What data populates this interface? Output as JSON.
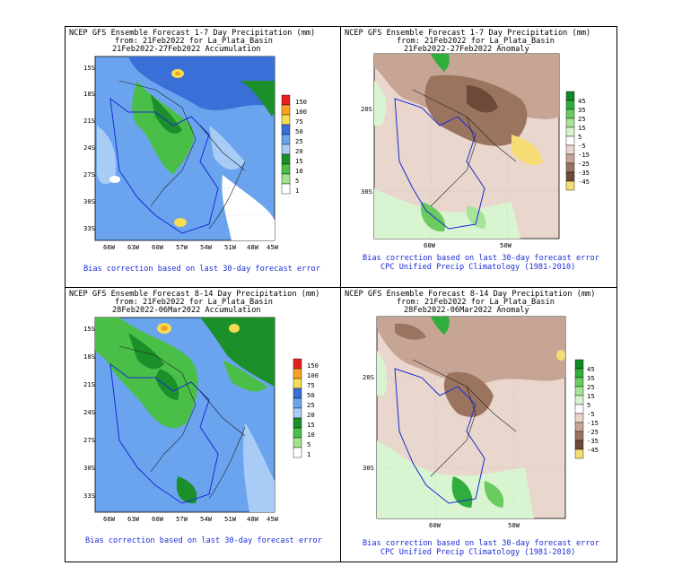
{
  "panels": [
    {
      "id": "p1",
      "title_lines": [
        "NCEP GFS Ensemble Forecast 1-7 Day Precipitation (mm)",
        "from: 21Feb2022  for La_Plata_Basin",
        "21Feb2022-27Feb2022 Accumulation"
      ],
      "lat_labels": [
        "15S",
        "18S",
        "21S",
        "24S",
        "27S",
        "30S",
        "33S"
      ],
      "lon_labels": [
        "66W",
        "63W",
        "60W",
        "57W",
        "54W",
        "51W",
        "48W",
        "45W"
      ],
      "legend": [
        "150",
        "100",
        "75",
        "50",
        "25",
        "20",
        "15",
        "10",
        "5",
        "1"
      ],
      "legend_colors": [
        "#e81f1f",
        "#f4a224",
        "#f6dc50",
        "#3a6fd8",
        "#6aa4ee",
        "#a8ccf6",
        "#1a8f2a",
        "#49bf47",
        "#a2e28d",
        "#ffffff"
      ],
      "footer": [
        "Bias correction based on last 30-day forecast error"
      ]
    },
    {
      "id": "p2",
      "title_lines": [
        "NCEP GFS Ensemble Forecast 1-7 Day Precipitation (mm)",
        "from: 21Feb2022  for La_Plata_Basin",
        "21Feb2022-27Feb2022 Anomaly"
      ],
      "lat_labels": [
        "20S",
        "30S"
      ],
      "lon_labels": [
        "60W",
        "50W"
      ],
      "legend": [
        "45",
        "35",
        "25",
        "15",
        "5",
        "-5",
        "-15",
        "-25",
        "-35",
        "-45"
      ],
      "legend_colors": [
        "#0f8a28",
        "#2fae3c",
        "#6acb5e",
        "#a8e39a",
        "#d8f4d0",
        "#ffffff",
        "#e9d6cc",
        "#c7a595",
        "#9b7460",
        "#6b4a3a",
        "#f6dc74"
      ],
      "footer": [
        "Bias correction based on last 30-day forecast error",
        "CPC Unified Precip Climatology (1981-2010)"
      ]
    },
    {
      "id": "p3",
      "title_lines": [
        "NCEP GFS Ensemble Forecast 8-14 Day Precipitation (mm)",
        "from: 21Feb2022  for La_Plata_Basin",
        "28Feb2022-06Mar2022 Accumulation"
      ],
      "lat_labels": [
        "15S",
        "18S",
        "21S",
        "24S",
        "27S",
        "30S",
        "33S"
      ],
      "lon_labels": [
        "66W",
        "63W",
        "60W",
        "57W",
        "54W",
        "51W",
        "48W",
        "45W"
      ],
      "legend": [
        "150",
        "100",
        "75",
        "50",
        "25",
        "20",
        "15",
        "10",
        "5",
        "1"
      ],
      "legend_colors": [
        "#e81f1f",
        "#f4a224",
        "#f6dc50",
        "#3a6fd8",
        "#6aa4ee",
        "#a8ccf6",
        "#1a8f2a",
        "#49bf47",
        "#a2e28d",
        "#ffffff"
      ],
      "footer": [
        "Bias correction based on last 30-day forecast error"
      ]
    },
    {
      "id": "p4",
      "title_lines": [
        "NCEP GFS Ensemble Forecast 8-14 Day Precipitation (mm)",
        "from: 21Feb2022  for La_Plata_Basin",
        "28Feb2022-06Mar2022 Anomaly"
      ],
      "lat_labels": [
        "20S",
        "30S"
      ],
      "lon_labels": [
        "60W",
        "50W"
      ],
      "legend": [
        "45",
        "35",
        "25",
        "15",
        "5",
        "-5",
        "-15",
        "-25",
        "-35",
        "-45"
      ],
      "legend_colors": [
        "#0f8a28",
        "#2fae3c",
        "#6acb5e",
        "#a8e39a",
        "#d8f4d0",
        "#ffffff",
        "#e9d6cc",
        "#c7a595",
        "#9b7460",
        "#6b4a3a",
        "#f6dc74"
      ],
      "footer": [
        "Bias correction based on last 30-day forecast error",
        "CPC Unified Precip Climatology (1981-2010)"
      ]
    }
  ]
}
